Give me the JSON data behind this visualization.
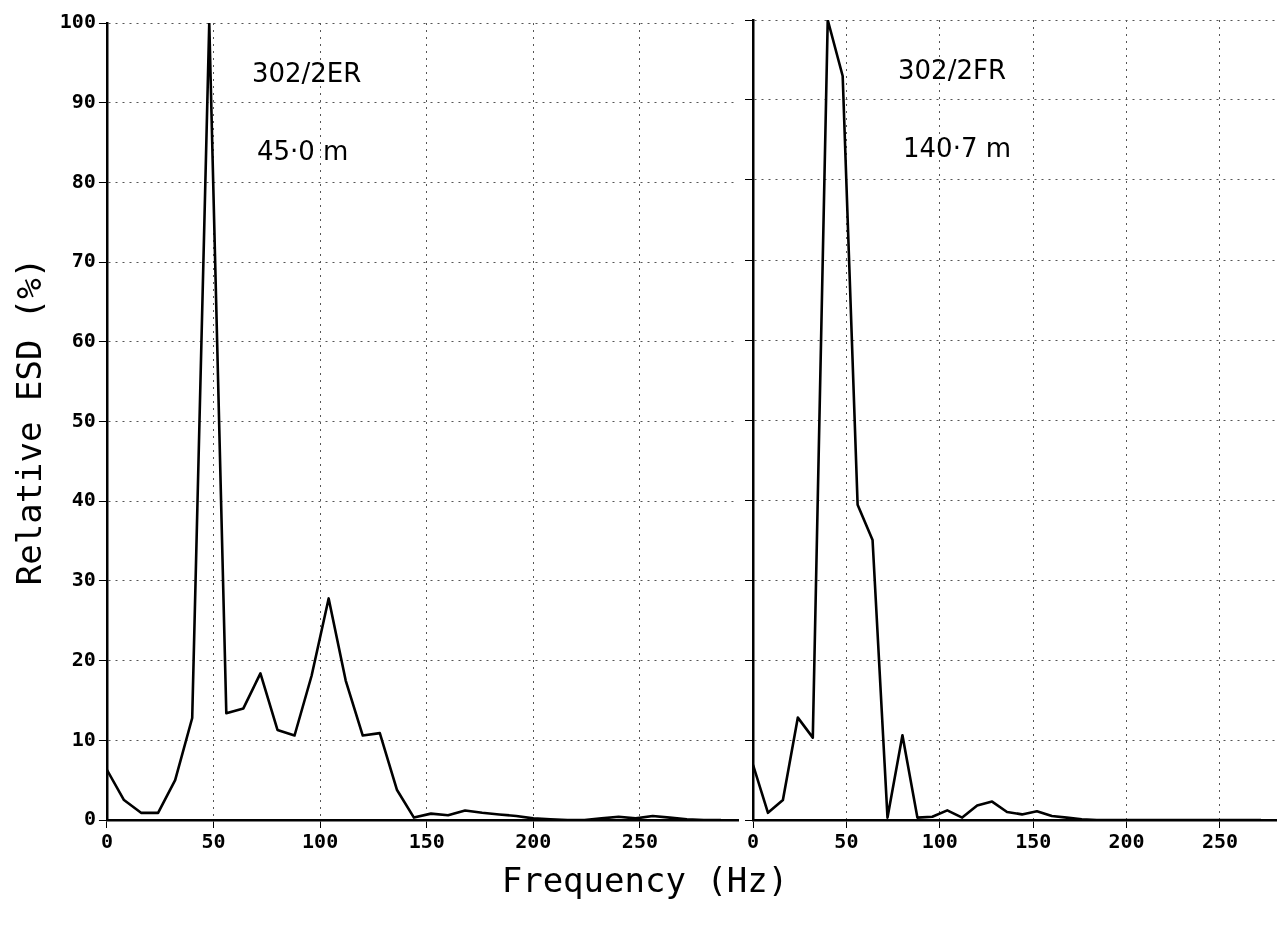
{
  "chart_data": [
    {
      "type": "line",
      "ylabel": "Relative ESD (%)",
      "xlabel": "Frequency (Hz)",
      "annotations": [
        "302/2ER",
        "45·0 m"
      ],
      "xlim": [
        0,
        296
      ],
      "xticks": [
        0,
        50,
        100,
        150,
        200,
        250
      ],
      "ylim": [
        0,
        100
      ],
      "yticks": [
        0,
        10,
        20,
        30,
        40,
        50,
        60,
        70,
        80,
        90,
        100
      ],
      "grid": true,
      "marker": "none",
      "line_style": "solid",
      "series": [
        {
          "color": "#000000",
          "x": [
            0,
            8,
            16,
            24,
            32,
            40,
            48,
            56,
            64,
            72,
            80,
            88,
            96,
            104,
            112,
            120,
            128,
            136,
            144,
            152,
            160,
            168,
            176,
            184,
            192,
            200,
            208,
            216,
            224,
            232,
            240,
            248,
            256,
            264,
            272,
            280,
            288
          ],
          "values": [
            6.3,
            2.5,
            0.9,
            0.9,
            5,
            12.8,
            100,
            13.4,
            14,
            18.4,
            11.3,
            10.6,
            18.1,
            27.8,
            17.5,
            10.6,
            10.9,
            3.8,
            0.3,
            0.8,
            0.6,
            1.2,
            0.9,
            0.7,
            0.5,
            0.2,
            0.1,
            0,
            0,
            0.2,
            0.4,
            0.2,
            0.5,
            0.3,
            0.1,
            0,
            0
          ]
        }
      ]
    },
    {
      "type": "line",
      "annotations": [
        "302/2FR",
        "140·7 m"
      ],
      "xlim": [
        0,
        280
      ],
      "xticks": [
        0,
        50,
        100,
        150,
        200,
        250
      ],
      "ylim": [
        0,
        100
      ],
      "yticks": [
        0,
        10,
        20,
        30,
        40,
        50,
        60,
        70,
        80,
        90,
        100
      ],
      "tick_labels": "x",
      "grid": true,
      "marker": "none",
      "line_style": "solid",
      "series": [
        {
          "color": "#000000",
          "x": [
            0,
            8,
            16,
            24,
            32,
            40,
            48,
            56,
            64,
            72,
            80,
            88,
            96,
            104,
            112,
            120,
            128,
            136,
            144,
            152,
            160,
            168,
            176,
            184,
            192,
            200,
            208,
            216,
            224,
            232,
            240,
            248,
            256,
            264,
            272
          ],
          "values": [
            6.9,
            0.9,
            2.5,
            12.8,
            10.3,
            100,
            93,
            39.4,
            35,
            0.3,
            10.6,
            0.3,
            0.4,
            1.2,
            0.3,
            1.8,
            2.3,
            1,
            0.7,
            1.1,
            0.5,
            0.3,
            0.1,
            0,
            0,
            0,
            0,
            0,
            0,
            0,
            0,
            0,
            0,
            0,
            0
          ]
        }
      ]
    }
  ]
}
